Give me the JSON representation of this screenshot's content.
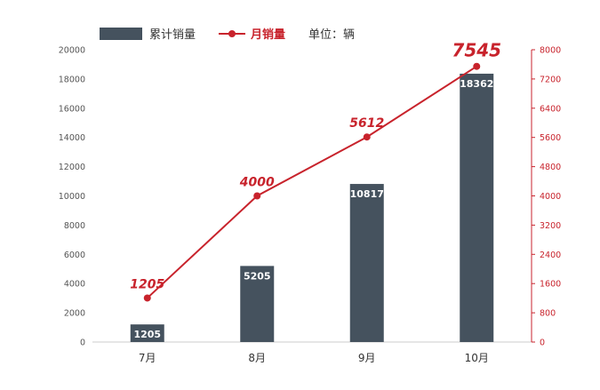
{
  "legend": {
    "bar_label": "累计销量",
    "line_label": "月销量",
    "unit_label": "单位：辆"
  },
  "colors": {
    "bar": "#45525e",
    "line": "#c8232c",
    "axis_text": "#555555",
    "grid": "#cccccc"
  },
  "chart_data": {
    "type": "bar",
    "categories": [
      "7月",
      "8月",
      "9月",
      "10月"
    ],
    "series": [
      {
        "name": "累计销量",
        "type": "bar",
        "axis": "left",
        "values": [
          1205,
          5205,
          10817,
          18362
        ]
      },
      {
        "name": "月销量",
        "type": "line",
        "axis": "right",
        "values": [
          1205,
          4000,
          5612,
          7545
        ]
      }
    ],
    "y_left": {
      "min": 0,
      "max": 20000,
      "ticks": [
        0,
        2000,
        4000,
        6000,
        8000,
        10000,
        12000,
        14000,
        16000,
        18000,
        20000
      ]
    },
    "y_right": {
      "min": 0,
      "max": 8000,
      "ticks": [
        0,
        800,
        1600,
        2400,
        3200,
        4000,
        4800,
        5600,
        6400,
        7200,
        8000
      ]
    },
    "grid": false,
    "legend_position": "top-left"
  }
}
